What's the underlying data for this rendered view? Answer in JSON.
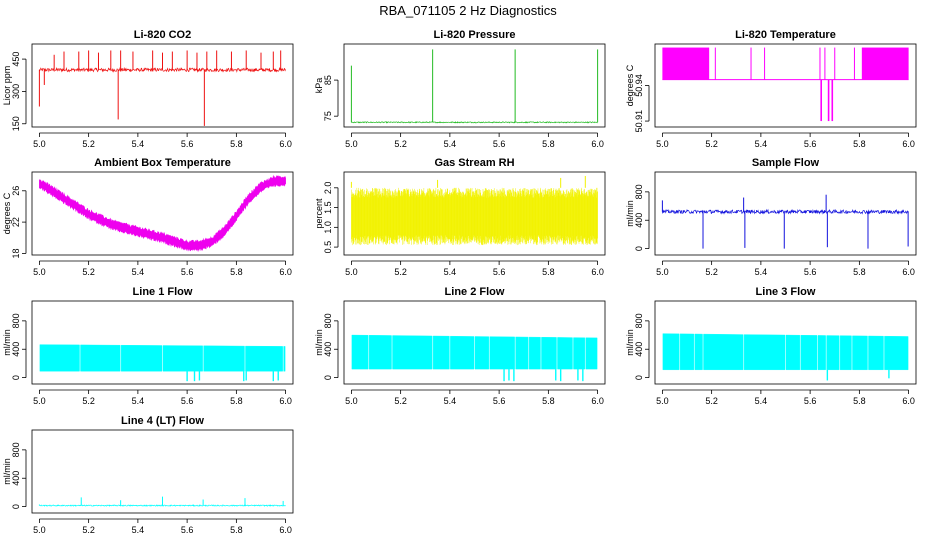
{
  "figure_title": "RBA_071105  2 Hz Diagnostics",
  "chart_data": [
    {
      "type": "line",
      "title": "Li-820 CO2",
      "ylabel": "Licor ppm",
      "color": "#ee1111",
      "xlim": [
        4.97,
        6.03
      ],
      "ylim": [
        135,
        520
      ],
      "xticks": [
        5.0,
        5.2,
        5.4,
        5.6,
        5.8,
        6.0
      ],
      "xtick_labels": [
        "5.0",
        "5.2",
        "5.4",
        "5.6",
        "5.8",
        "6.0"
      ],
      "yticks": [
        150,
        300,
        450
      ],
      "ytick_labels": [
        "150",
        "300",
        "450"
      ],
      "series": [
        {
          "name": "CO2",
          "pattern": "noise",
          "baseline": 400,
          "noise": 8,
          "spikes": [
            [
              5.0,
              230
            ],
            [
              5.02,
              330
            ],
            [
              5.06,
              470
            ],
            [
              5.1,
              485
            ],
            [
              5.16,
              485
            ],
            [
              5.2,
              490
            ],
            [
              5.24,
              480
            ],
            [
              5.29,
              490
            ],
            [
              5.32,
              170
            ],
            [
              5.33,
              490
            ],
            [
              5.38,
              485
            ],
            [
              5.46,
              490
            ],
            [
              5.5,
              480
            ],
            [
              5.54,
              485
            ],
            [
              5.6,
              490
            ],
            [
              5.64,
              480
            ],
            [
              5.67,
              140
            ],
            [
              5.68,
              485
            ],
            [
              5.72,
              490
            ],
            [
              5.78,
              485
            ],
            [
              5.84,
              490
            ],
            [
              5.9,
              480
            ],
            [
              5.95,
              485
            ],
            [
              5.98,
              490
            ]
          ]
        }
      ]
    },
    {
      "type": "line",
      "title": "Li-820 Pressure",
      "ylabel": "kPa",
      "color": "#22bb22",
      "xlim": [
        4.97,
        6.03
      ],
      "ylim": [
        72,
        95
      ],
      "xticks": [
        5.0,
        5.2,
        5.4,
        5.6,
        5.8,
        6.0
      ],
      "xtick_labels": [
        "5.0",
        "5.2",
        "5.4",
        "5.6",
        "5.8",
        "6.0"
      ],
      "yticks": [
        75,
        85
      ],
      "ytick_labels": [
        "75",
        "85"
      ],
      "series": [
        {
          "name": "Pressure",
          "pattern": "noise",
          "baseline": 73.3,
          "noise": 0.15,
          "spikes": [
            [
              5.0,
              89
            ],
            [
              5.33,
              93.5
            ],
            [
              5.665,
              93.5
            ],
            [
              6.0,
              93.5
            ]
          ]
        }
      ]
    },
    {
      "type": "line",
      "title": "Li-820 Temperature",
      "ylabel": "degrees C",
      "color": "#ff00ff",
      "xlim": [
        4.97,
        6.03
      ],
      "ylim": [
        50.905,
        50.975
      ],
      "xticks": [
        5.0,
        5.2,
        5.4,
        5.6,
        5.8,
        6.0
      ],
      "xtick_labels": [
        "5.0",
        "5.2",
        "5.4",
        "5.6",
        "5.8",
        "6.0"
      ],
      "yticks": [
        50.91,
        50.94
      ],
      "ytick_labels": [
        "50.91",
        "50.94"
      ],
      "series": [
        {
          "name": "Temperature",
          "pattern": "toggle",
          "low": 50.945,
          "high": 50.972,
          "dense_ranges": [
            [
              5.0,
              5.19
            ],
            [
              5.81,
              6.0
            ]
          ],
          "spikes_high": [
            5.215,
            5.36,
            5.415,
            5.64,
            5.66,
            5.7,
            5.78
          ],
          "spikes_low": [
            [
              5.645,
              50.91
            ],
            [
              5.675,
              50.91
            ],
            [
              5.69,
              50.91
            ]
          ]
        }
      ]
    },
    {
      "type": "line",
      "title": "Ambient Box Temperature",
      "ylabel": "degrees C",
      "color": "#ee00ee",
      "xlim": [
        4.97,
        6.03
      ],
      "ylim": [
        17.8,
        28.4
      ],
      "xticks": [
        5.0,
        5.2,
        5.4,
        5.6,
        5.8,
        6.0
      ],
      "xtick_labels": [
        "5.0",
        "5.2",
        "5.4",
        "5.6",
        "5.8",
        "6.0"
      ],
      "yticks": [
        18,
        22,
        26
      ],
      "ytick_labels": [
        "18",
        "22",
        "26"
      ],
      "series": [
        {
          "name": "Ambient",
          "pattern": "band",
          "band": 1.0,
          "x": [
            5.0,
            5.1,
            5.2,
            5.3,
            5.4,
            5.5,
            5.6,
            5.65,
            5.7,
            5.75,
            5.8,
            5.85,
            5.9,
            5.95,
            6.0
          ],
          "y": [
            27.0,
            25.0,
            23.0,
            21.6,
            20.8,
            20.0,
            19.0,
            19.0,
            19.5,
            20.8,
            22.8,
            25.0,
            26.5,
            27.2,
            27.3
          ]
        }
      ]
    },
    {
      "type": "line",
      "title": "Gas Stream RH",
      "ylabel": "percent",
      "color": "#f2f200",
      "xlim": [
        4.97,
        6.03
      ],
      "ylim": [
        0.3,
        2.4
      ],
      "xticks": [
        5.0,
        5.2,
        5.4,
        5.6,
        5.8,
        6.0
      ],
      "xtick_labels": [
        "5.0",
        "5.2",
        "5.4",
        "5.6",
        "5.8",
        "6.0"
      ],
      "yticks": [
        0.5,
        1.0,
        1.5,
        2.0
      ],
      "ytick_labels": [
        "0.5",
        "1.0",
        "1.5",
        "2.0"
      ],
      "series": [
        {
          "name": "RH",
          "pattern": "range_noise",
          "low": 0.55,
          "high": 2.0,
          "peaks": [
            [
              5.0,
              2.15
            ],
            [
              5.35,
              2.2
            ],
            [
              5.85,
              2.25
            ],
            [
              5.95,
              2.3
            ]
          ]
        }
      ]
    },
    {
      "type": "line",
      "title": "Sample Flow",
      "ylabel": "ml/min",
      "color": "#1111dd",
      "xlim": [
        4.97,
        6.03
      ],
      "ylim": [
        -90,
        1080
      ],
      "xticks": [
        5.0,
        5.2,
        5.4,
        5.6,
        5.8,
        6.0
      ],
      "xtick_labels": [
        "5.0",
        "5.2",
        "5.4",
        "5.6",
        "5.8",
        "6.0"
      ],
      "yticks": [
        0,
        400,
        800
      ],
      "ytick_labels": [
        "0",
        "400",
        "800"
      ],
      "series": [
        {
          "name": "Flow",
          "pattern": "noise",
          "baseline": 520,
          "noise": 25,
          "spikes": [
            [
              5.0,
              680
            ],
            [
              5.165,
              0
            ],
            [
              5.33,
              720
            ],
            [
              5.335,
              10
            ],
            [
              5.495,
              0
            ],
            [
              5.665,
              760
            ],
            [
              5.67,
              20
            ],
            [
              5.835,
              0
            ],
            [
              5.998,
              30
            ]
          ]
        }
      ]
    },
    {
      "type": "line",
      "title": "Line 1 Flow",
      "ylabel": "ml/min",
      "color": "#00ffff",
      "xlim": [
        4.97,
        6.03
      ],
      "ylim": [
        -90,
        1080
      ],
      "xticks": [
        5.0,
        5.2,
        5.4,
        5.6,
        5.8,
        6.0
      ],
      "xtick_labels": [
        "5.0",
        "5.2",
        "5.4",
        "5.6",
        "5.8",
        "6.0"
      ],
      "yticks": [
        0,
        400,
        800
      ],
      "ytick_labels": [
        "0",
        "400",
        "800"
      ],
      "series": [
        {
          "name": "Line 1",
          "pattern": "range",
          "low": 90,
          "high": 465,
          "end_high": 440,
          "gaps": [
            5.165,
            5.33,
            5.5,
            5.665,
            5.835,
            5.99
          ],
          "dips": [
            [
              5.6,
              -50
            ],
            [
              5.63,
              -50
            ],
            [
              5.65,
              -40
            ],
            [
              5.83,
              -50
            ],
            [
              5.84,
              -40
            ],
            [
              5.95,
              -50
            ],
            [
              5.97,
              -40
            ]
          ]
        }
      ]
    },
    {
      "type": "line",
      "title": "Line 2 Flow",
      "ylabel": "ml/min",
      "color": "#00ffff",
      "xlim": [
        4.97,
        6.03
      ],
      "ylim": [
        -90,
        1080
      ],
      "xticks": [
        5.0,
        5.2,
        5.4,
        5.6,
        5.8,
        6.0
      ],
      "xtick_labels": [
        "5.0",
        "5.2",
        "5.4",
        "5.6",
        "5.8",
        "6.0"
      ],
      "yticks": [
        0,
        400,
        800
      ],
      "ytick_labels": [
        "0",
        "400",
        "800"
      ],
      "series": [
        {
          "name": "Line 2",
          "pattern": "range",
          "low": 120,
          "high": 600,
          "end_high": 560,
          "gaps": [
            5.07,
            5.165,
            5.33,
            5.4,
            5.5,
            5.56,
            5.665,
            5.72,
            5.77,
            5.835,
            5.9,
            5.95
          ],
          "dips": [
            [
              5.62,
              -50
            ],
            [
              5.64,
              -40
            ],
            [
              5.66,
              -50
            ],
            [
              5.83,
              -40
            ],
            [
              5.85,
              -50
            ],
            [
              5.92,
              -40
            ],
            [
              5.94,
              -50
            ]
          ]
        }
      ]
    },
    {
      "type": "line",
      "title": "Line 3 Flow",
      "ylabel": "ml/min",
      "color": "#00ffff",
      "xlim": [
        4.97,
        6.03
      ],
      "ylim": [
        -90,
        1080
      ],
      "xticks": [
        5.0,
        5.2,
        5.4,
        5.6,
        5.8,
        6.0
      ],
      "xtick_labels": [
        "5.0",
        "5.2",
        "5.4",
        "5.6",
        "5.8",
        "6.0"
      ],
      "yticks": [
        0,
        400,
        800
      ],
      "ytick_labels": [
        "0",
        "400",
        "800"
      ],
      "series": [
        {
          "name": "Line 3",
          "pattern": "range",
          "low": 110,
          "high": 620,
          "end_high": 580,
          "gaps": [
            5.07,
            5.13,
            5.165,
            5.33,
            5.5,
            5.56,
            5.63,
            5.665,
            5.72,
            5.77,
            5.835,
            5.9
          ],
          "dips": [
            [
              5.67,
              -40
            ],
            [
              5.92,
              -10
            ]
          ]
        }
      ]
    },
    {
      "type": "line",
      "title": "Line 4 (LT) Flow",
      "ylabel": "ml/min",
      "color": "#00ffff",
      "xlim": [
        4.97,
        6.03
      ],
      "ylim": [
        -90,
        1080
      ],
      "xticks": [
        5.0,
        5.2,
        5.4,
        5.6,
        5.8,
        6.0
      ],
      "xtick_labels": [
        "5.0",
        "5.2",
        "5.4",
        "5.6",
        "5.8",
        "6.0"
      ],
      "yticks": [
        0,
        400,
        800
      ],
      "ytick_labels": [
        "0",
        "400",
        "800"
      ],
      "series": [
        {
          "name": "Line 4",
          "pattern": "noise",
          "baseline": 15,
          "noise": 8,
          "spikes": [
            [
              5.0,
              30
            ],
            [
              5.17,
              130
            ],
            [
              5.33,
              90
            ],
            [
              5.5,
              140
            ],
            [
              5.665,
              100
            ],
            [
              5.835,
              120
            ],
            [
              5.99,
              80
            ]
          ]
        }
      ]
    }
  ]
}
